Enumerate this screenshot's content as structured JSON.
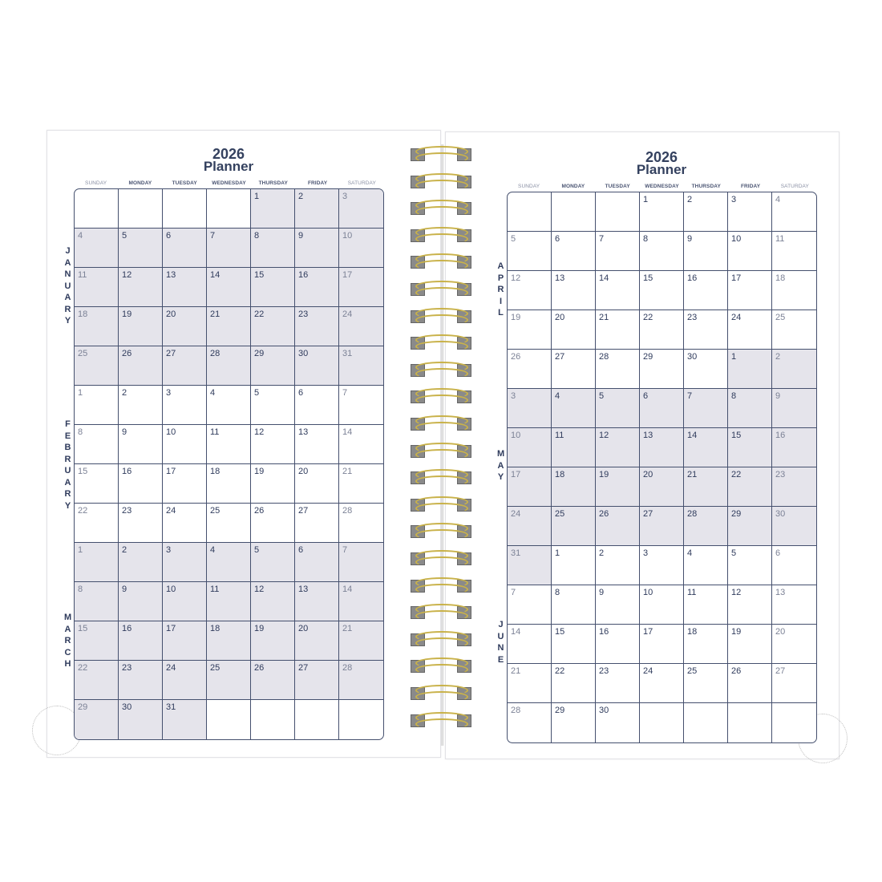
{
  "title_year": "2026",
  "title_word": "Planner",
  "days": [
    "SUNDAY",
    "MONDAY",
    "TUESDAY",
    "WEDNESDAY",
    "THURSDAY",
    "FRIDAY",
    "SATURDAY"
  ],
  "colors": {
    "ink": "#2f3b5c",
    "shade": "#e5e4eb",
    "ring": "#c9b24a"
  },
  "left": {
    "months": [
      "JANUARY",
      "FEBRUARY",
      "MARCH"
    ],
    "rows": [
      [
        "",
        "",
        "",
        "",
        "1",
        "2",
        "3"
      ],
      [
        "4",
        "5",
        "6",
        "7",
        "8",
        "9",
        "10"
      ],
      [
        "11",
        "12",
        "13",
        "14",
        "15",
        "16",
        "17"
      ],
      [
        "18",
        "19",
        "20",
        "21",
        "22",
        "23",
        "24"
      ],
      [
        "25",
        "26",
        "27",
        "28",
        "29",
        "30",
        "31"
      ],
      [
        "1",
        "2",
        "3",
        "4",
        "5",
        "6",
        "7"
      ],
      [
        "8",
        "9",
        "10",
        "11",
        "12",
        "13",
        "14"
      ],
      [
        "15",
        "16",
        "17",
        "18",
        "19",
        "20",
        "21"
      ],
      [
        "22",
        "23",
        "24",
        "25",
        "26",
        "27",
        "28"
      ],
      [
        "1",
        "2",
        "3",
        "4",
        "5",
        "6",
        "7"
      ],
      [
        "8",
        "9",
        "10",
        "11",
        "12",
        "13",
        "14"
      ],
      [
        "15",
        "16",
        "17",
        "18",
        "19",
        "20",
        "21"
      ],
      [
        "22",
        "23",
        "24",
        "25",
        "26",
        "27",
        "28"
      ],
      [
        "29",
        "30",
        "31",
        "",
        "",
        "",
        ""
      ]
    ],
    "shade": [
      "0000111",
      "1111111",
      "1111111",
      "1111111",
      "1111111",
      "0000000",
      "0000000",
      "0000000",
      "0000000",
      "1111111",
      "1111111",
      "1111111",
      "1111111",
      "1110000"
    ]
  },
  "right": {
    "months": [
      "APRIL",
      "MAY",
      "JUNE"
    ],
    "rows": [
      [
        "",
        "",
        "",
        "1",
        "2",
        "3",
        "4"
      ],
      [
        "5",
        "6",
        "7",
        "8",
        "9",
        "10",
        "11"
      ],
      [
        "12",
        "13",
        "14",
        "15",
        "16",
        "17",
        "18"
      ],
      [
        "19",
        "20",
        "21",
        "22",
        "23",
        "24",
        "25"
      ],
      [
        "26",
        "27",
        "28",
        "29",
        "30",
        "1",
        "2"
      ],
      [
        "3",
        "4",
        "5",
        "6",
        "7",
        "8",
        "9"
      ],
      [
        "10",
        "11",
        "12",
        "13",
        "14",
        "15",
        "16"
      ],
      [
        "17",
        "18",
        "19",
        "20",
        "21",
        "22",
        "23"
      ],
      [
        "24",
        "25",
        "26",
        "27",
        "28",
        "29",
        "30"
      ],
      [
        "31",
        "1",
        "2",
        "3",
        "4",
        "5",
        "6"
      ],
      [
        "7",
        "8",
        "9",
        "10",
        "11",
        "12",
        "13"
      ],
      [
        "14",
        "15",
        "16",
        "17",
        "18",
        "19",
        "20"
      ],
      [
        "21",
        "22",
        "23",
        "24",
        "25",
        "26",
        "27"
      ],
      [
        "28",
        "29",
        "30",
        "",
        "",
        "",
        ""
      ]
    ],
    "shade": [
      "0000000",
      "0000000",
      "0000000",
      "0000000",
      "0000011",
      "1111111",
      "1111111",
      "1111111",
      "1111111",
      "1000000",
      "0000000",
      "0000000",
      "0000000",
      "0000000"
    ]
  }
}
